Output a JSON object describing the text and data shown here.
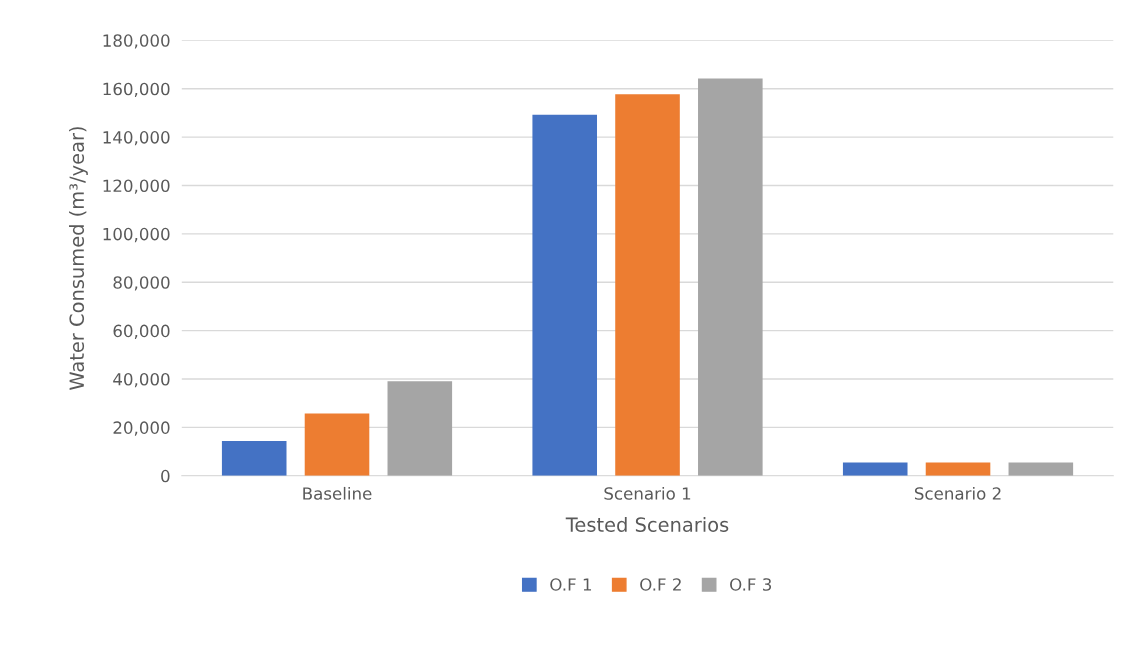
{
  "chart_data": {
    "type": "bar",
    "xlabel": "Tested Scenarios",
    "ylabel": "Water Consumed (m³/year)",
    "categories": [
      "Baseline",
      "Scenario 1",
      "Scenario 2"
    ],
    "series": [
      {
        "name": "O.F 1",
        "color": "#4472c4",
        "values": [
          14400,
          149200,
          5500
        ]
      },
      {
        "name": "O.F 2",
        "color": "#ed7d31",
        "values": [
          25700,
          157700,
          5500
        ]
      },
      {
        "name": "O.F 3",
        "color": "#a5a5a5",
        "values": [
          39100,
          164200,
          5500
        ]
      }
    ],
    "ylim": [
      0,
      180000
    ],
    "yticks": [
      {
        "value": 0,
        "label": "0"
      },
      {
        "value": 20000,
        "label": "20,000"
      },
      {
        "value": 40000,
        "label": "40,000"
      },
      {
        "value": 60000,
        "label": "60,000"
      },
      {
        "value": 80000,
        "label": "80,000"
      },
      {
        "value": 100000,
        "label": "100,000"
      },
      {
        "value": 120000,
        "label": "120,000"
      },
      {
        "value": 140000,
        "label": "140,000"
      },
      {
        "value": 160000,
        "label": "160,000"
      },
      {
        "value": 180000,
        "label": "180,000"
      }
    ],
    "grid": "y",
    "legend": "bottom"
  }
}
